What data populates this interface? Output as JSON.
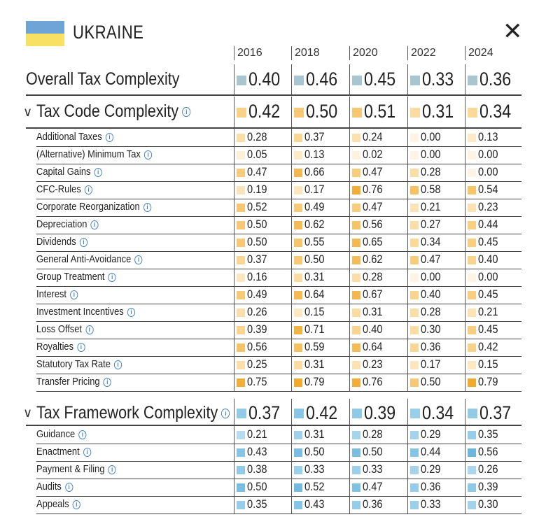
{
  "country": "UKRAINE",
  "close_icon": "close-icon",
  "years": [
    "2016",
    "2018",
    "2020",
    "2022",
    "2024"
  ],
  "overall": {
    "label": "Overall Tax Complexity",
    "values": [
      "0.40",
      "0.46",
      "0.45",
      "0.33",
      "0.36"
    ]
  },
  "code": {
    "label": "Tax Code Complexity",
    "values": [
      "0.42",
      "0.50",
      "0.51",
      "0.31",
      "0.34"
    ],
    "rows": [
      {
        "label": "Additional Taxes",
        "values": [
          "0.28",
          "0.37",
          "0.24",
          "0.00",
          "0.13"
        ]
      },
      {
        "label": "(Alternative) Minimum Tax",
        "values": [
          "0.05",
          "0.13",
          "0.02",
          "0.00",
          "0.00"
        ]
      },
      {
        "label": "Capital Gains",
        "values": [
          "0.47",
          "0.66",
          "0.47",
          "0.28",
          "0.00"
        ]
      },
      {
        "label": "CFC-Rules",
        "values": [
          "0.19",
          "0.17",
          "0.76",
          "0.58",
          "0.54"
        ]
      },
      {
        "label": "Corporate Reorganization",
        "values": [
          "0.52",
          "0.49",
          "0.47",
          "0.21",
          "0.23"
        ]
      },
      {
        "label": "Depreciation",
        "values": [
          "0.50",
          "0.62",
          "0.56",
          "0.27",
          "0.44"
        ]
      },
      {
        "label": "Dividends",
        "values": [
          "0.50",
          "0.55",
          "0.65",
          "0.34",
          "0.45"
        ]
      },
      {
        "label": "General Anti-Avoidance",
        "values": [
          "0.37",
          "0.50",
          "0.62",
          "0.47",
          "0.40"
        ]
      },
      {
        "label": "Group Treatment",
        "values": [
          "0.16",
          "0.31",
          "0.28",
          "0.00",
          "0.00"
        ]
      },
      {
        "label": "Interest",
        "values": [
          "0.49",
          "0.64",
          "0.67",
          "0.40",
          "0.45"
        ]
      },
      {
        "label": "Investment Incentives",
        "values": [
          "0.26",
          "0.15",
          "0.31",
          "0.28",
          "0.21"
        ]
      },
      {
        "label": "Loss Offset",
        "values": [
          "0.39",
          "0.71",
          "0.40",
          "0.30",
          "0.45"
        ]
      },
      {
        "label": "Royalties",
        "values": [
          "0.56",
          "0.59",
          "0.64",
          "0.36",
          "0.42"
        ]
      },
      {
        "label": "Statutory Tax Rate",
        "values": [
          "0.25",
          "0.31",
          "0.23",
          "0.17",
          "0.15"
        ]
      },
      {
        "label": "Transfer Pricing",
        "values": [
          "0.75",
          "0.79",
          "0.76",
          "0.50",
          "0.79"
        ]
      }
    ]
  },
  "framework": {
    "label": "Tax Framework Complexity",
    "values": [
      "0.37",
      "0.42",
      "0.39",
      "0.34",
      "0.37"
    ],
    "rows": [
      {
        "label": "Guidance",
        "values": [
          "0.21",
          "0.31",
          "0.28",
          "0.29",
          "0.35"
        ]
      },
      {
        "label": "Enactment",
        "values": [
          "0.43",
          "0.50",
          "0.50",
          "0.44",
          "0.56"
        ]
      },
      {
        "label": "Payment & Filing",
        "values": [
          "0.38",
          "0.33",
          "0.33",
          "0.29",
          "0.26"
        ]
      },
      {
        "label": "Audits",
        "values": [
          "0.50",
          "0.52",
          "0.47",
          "0.36",
          "0.39"
        ]
      },
      {
        "label": "Appeals",
        "values": [
          "0.35",
          "0.43",
          "0.36",
          "0.33",
          "0.30"
        ]
      }
    ]
  },
  "colors": {
    "overall_swatch": "#a9c5cf",
    "code_scale": [
      "#fdf4e3",
      "#f9d48e",
      "#f0a92e"
    ],
    "framework_scale": [
      "#e6f1f8",
      "#8cc8e6",
      "#3e9ed3"
    ]
  },
  "chart_data": {
    "type": "table",
    "title": "UKRAINE",
    "columns": [
      "2016",
      "2018",
      "2020",
      "2022",
      "2024"
    ],
    "rows": [
      {
        "name": "Overall Tax Complexity",
        "values": [
          0.4,
          0.46,
          0.45,
          0.33,
          0.36
        ]
      },
      {
        "name": "Tax Code Complexity",
        "values": [
          0.42,
          0.5,
          0.51,
          0.31,
          0.34
        ]
      },
      {
        "name": "Additional Taxes",
        "values": [
          0.28,
          0.37,
          0.24,
          0.0,
          0.13
        ]
      },
      {
        "name": "(Alternative) Minimum Tax",
        "values": [
          0.05,
          0.13,
          0.02,
          0.0,
          0.0
        ]
      },
      {
        "name": "Capital Gains",
        "values": [
          0.47,
          0.66,
          0.47,
          0.28,
          0.0
        ]
      },
      {
        "name": "CFC-Rules",
        "values": [
          0.19,
          0.17,
          0.76,
          0.58,
          0.54
        ]
      },
      {
        "name": "Corporate Reorganization",
        "values": [
          0.52,
          0.49,
          0.47,
          0.21,
          0.23
        ]
      },
      {
        "name": "Depreciation",
        "values": [
          0.5,
          0.62,
          0.56,
          0.27,
          0.44
        ]
      },
      {
        "name": "Dividends",
        "values": [
          0.5,
          0.55,
          0.65,
          0.34,
          0.45
        ]
      },
      {
        "name": "General Anti-Avoidance",
        "values": [
          0.37,
          0.5,
          0.62,
          0.47,
          0.4
        ]
      },
      {
        "name": "Group Treatment",
        "values": [
          0.16,
          0.31,
          0.28,
          0.0,
          0.0
        ]
      },
      {
        "name": "Interest",
        "values": [
          0.49,
          0.64,
          0.67,
          0.4,
          0.45
        ]
      },
      {
        "name": "Investment Incentives",
        "values": [
          0.26,
          0.15,
          0.31,
          0.28,
          0.21
        ]
      },
      {
        "name": "Loss Offset",
        "values": [
          0.39,
          0.71,
          0.4,
          0.3,
          0.45
        ]
      },
      {
        "name": "Royalties",
        "values": [
          0.56,
          0.59,
          0.64,
          0.36,
          0.42
        ]
      },
      {
        "name": "Statutory Tax Rate",
        "values": [
          0.25,
          0.31,
          0.23,
          0.17,
          0.15
        ]
      },
      {
        "name": "Transfer Pricing",
        "values": [
          0.75,
          0.79,
          0.76,
          0.5,
          0.79
        ]
      },
      {
        "name": "Tax Framework Complexity",
        "values": [
          0.37,
          0.42,
          0.39,
          0.34,
          0.37
        ]
      },
      {
        "name": "Guidance",
        "values": [
          0.21,
          0.31,
          0.28,
          0.29,
          0.35
        ]
      },
      {
        "name": "Enactment",
        "values": [
          0.43,
          0.5,
          0.5,
          0.44,
          0.56
        ]
      },
      {
        "name": "Payment & Filing",
        "values": [
          0.38,
          0.33,
          0.33,
          0.29,
          0.26
        ]
      },
      {
        "name": "Audits",
        "values": [
          0.5,
          0.52,
          0.47,
          0.36,
          0.39
        ]
      },
      {
        "name": "Appeals",
        "values": [
          0.35,
          0.43,
          0.36,
          0.33,
          0.3
        ]
      }
    ]
  }
}
